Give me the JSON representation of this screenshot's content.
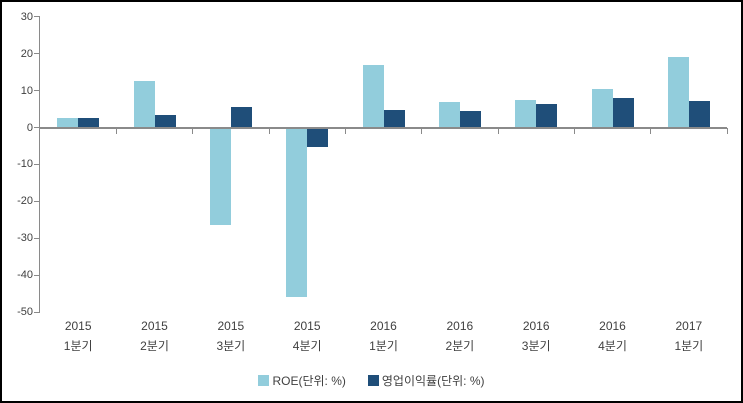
{
  "chart_data": {
    "type": "bar",
    "title": "",
    "xlabel": "",
    "ylabel": "",
    "categories": [
      [
        "2015",
        "1분기"
      ],
      [
        "2015",
        "2분기"
      ],
      [
        "2015",
        "3분기"
      ],
      [
        "2015",
        "4분기"
      ],
      [
        "2016",
        "1분기"
      ],
      [
        "2016",
        "2분기"
      ],
      [
        "2016",
        "3분기"
      ],
      [
        "2016",
        "4분기"
      ],
      [
        "2017",
        "1분기"
      ]
    ],
    "series": [
      {
        "name": "ROE(단위: %)",
        "color": "#92CDDC",
        "values": [
          2.5,
          12.5,
          -26.3,
          -46.0,
          17.0,
          7.0,
          7.5,
          10.5,
          19.0
        ]
      },
      {
        "name": "영업이익률(단위: %)",
        "color": "#1F4E79",
        "values": [
          2.6,
          3.4,
          5.5,
          -5.3,
          4.7,
          4.6,
          6.4,
          7.9,
          7.2
        ]
      }
    ],
    "yticks": [
      30,
      20,
      10,
      0,
      -10,
      -20,
      -30,
      -40,
      -50
    ],
    "ylim": [
      -50,
      30
    ],
    "grid": false,
    "legend_position": "bottom"
  },
  "colors": {
    "axis": "#8a8a8a",
    "text": "#404040",
    "background": "#ffffff",
    "frame_border": "#000000",
    "series_light": "#92CDDC",
    "series_dark": "#1F4E79"
  }
}
